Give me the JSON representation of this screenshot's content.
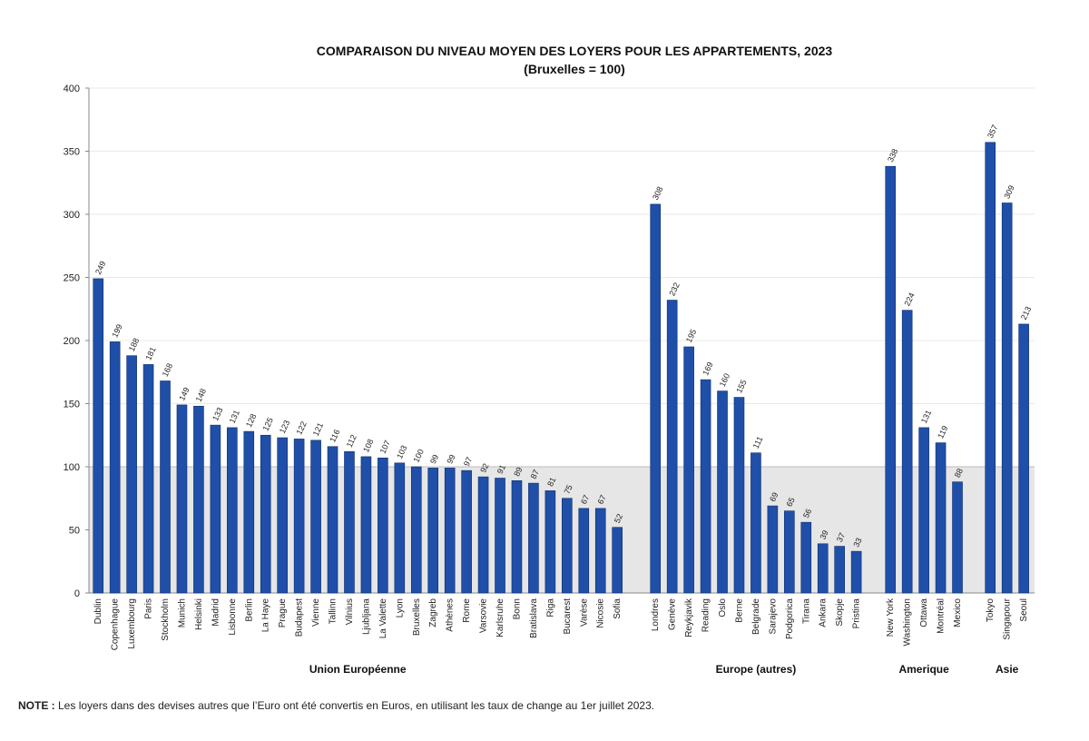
{
  "chart_data": {
    "type": "bar",
    "title": "COMPARAISON DU NIVEAU MOYEN DES LOYERS POUR LES APPARTEMENTS, 2023",
    "subtitle": "(Bruxelles = 100)",
    "xlabel": "",
    "ylabel": "",
    "ylim": [
      0,
      400
    ],
    "yticks": [
      0,
      50,
      100,
      150,
      200,
      250,
      300,
      350,
      400
    ],
    "reference_value": 100,
    "grid": true,
    "groups": [
      {
        "name": "Union Européenne",
        "categories": [
          "Dublin",
          "Copenhague",
          "Luxembourg",
          "Paris",
          "Stockholm",
          "Munich",
          "Helsinki",
          "Madrid",
          "Lisbonne",
          "Berlin",
          "La Haye",
          "Prague",
          "Budapest",
          "Vienne",
          "Tallinn",
          "Vilnius",
          "Ljubljana",
          "La Valette",
          "Lyon",
          "Bruxelles",
          "Zagreb",
          "Athènes",
          "Rome",
          "Varsovie",
          "Karlsruhe",
          "Bonn",
          "Bratislava",
          "Riga",
          "Bucarest",
          "Varèse",
          "Nicosie",
          "Sofia"
        ],
        "values": [
          249,
          199,
          188,
          181,
          168,
          149,
          148,
          133,
          131,
          128,
          125,
          123,
          122,
          121,
          116,
          112,
          108,
          107,
          103,
          100,
          99,
          99,
          97,
          92,
          91,
          89,
          87,
          81,
          75,
          67,
          67,
          52
        ]
      },
      {
        "name": "Europe (autres)",
        "categories": [
          "Londres",
          "Genève",
          "Reykjavik",
          "Reading",
          "Oslo",
          "Berne",
          "Belgrade",
          "Sarajevo",
          "Podgorica",
          "Tirana",
          "Ankara",
          "Skopje",
          "Pristina"
        ],
        "values": [
          308,
          232,
          195,
          169,
          160,
          155,
          111,
          69,
          65,
          56,
          39,
          37,
          33
        ]
      },
      {
        "name": "Amerique",
        "categories": [
          "New York",
          "Washington",
          "Ottawa",
          "Montréal",
          "Mexico"
        ],
        "values": [
          338,
          224,
          131,
          119,
          88
        ]
      },
      {
        "name": "Asie",
        "categories": [
          "Tokyo",
          "Singapour",
          "Seoul"
        ],
        "values": [
          357,
          309,
          213
        ]
      }
    ],
    "colors": {
      "bar": "#1f4fa8",
      "bar_edge": "#0d2f6e",
      "reference_band": "#e6e6e6",
      "grid": "#e9e9e9",
      "axis": "#888888"
    }
  },
  "note": {
    "label": "NOTE :",
    "text": " Les loyers dans des devises autres que l’Euro ont été convertis en Euros, en utilisant les taux de change au 1er juillet 2023."
  }
}
